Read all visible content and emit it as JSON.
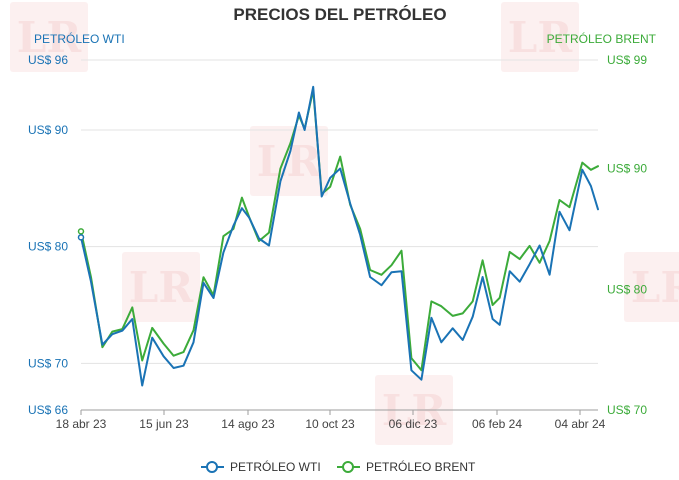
{
  "chart_data": {
    "type": "line",
    "title": "PRECIOS DEL PETRÓLEO",
    "watermark": "LR",
    "colors": {
      "wti": "#1a73b5",
      "brent": "#3cab3a"
    },
    "left_axis": {
      "label": "PETRÓLEO WTI",
      "range": [
        66,
        96
      ],
      "ticks": [
        {
          "value": 96,
          "label": "US$ 96"
        },
        {
          "value": 90,
          "label": "US$ 90"
        },
        {
          "value": 80,
          "label": "US$ 80"
        },
        {
          "value": 70,
          "label": "US$ 70"
        },
        {
          "value": 66,
          "label": "US$ 66"
        }
      ]
    },
    "right_axis": {
      "label": "PETRÓLEO BRENT",
      "range": [
        70,
        99
      ],
      "ticks": [
        {
          "value": 99,
          "label": "US$ 99"
        },
        {
          "value": 90,
          "label": "US$ 90"
        },
        {
          "value": 80,
          "label": "US$ 80"
        },
        {
          "value": 70,
          "label": "US$ 70"
        }
      ]
    },
    "x_ticks": [
      "18 abr 23",
      "15 jun 23",
      "14 ago 23",
      "10 oct 23",
      "06 dic 23",
      "06 feb 24",
      "04 abr 24"
    ],
    "grid": "horizontal",
    "legend": {
      "placement": "bottom-center",
      "entries": [
        "PETRÓLEO WTI",
        "PETRÓLEO BRENT"
      ]
    },
    "series": [
      {
        "name": "PETRÓLEO WTI",
        "axis": "left",
        "dates": [
          "2023-04-18",
          "2023-04-25",
          "2023-05-03",
          "2023-05-10",
          "2023-05-17",
          "2023-05-24",
          "2023-05-31",
          "2023-06-07",
          "2023-06-15",
          "2023-06-22",
          "2023-06-29",
          "2023-07-06",
          "2023-07-13",
          "2023-07-20",
          "2023-07-27",
          "2023-08-03",
          "2023-08-09",
          "2023-08-14",
          "2023-08-21",
          "2023-08-28",
          "2023-09-05",
          "2023-09-12",
          "2023-09-18",
          "2023-09-22",
          "2023-09-28",
          "2023-10-04",
          "2023-10-10",
          "2023-10-17",
          "2023-10-24",
          "2023-10-31",
          "2023-11-07",
          "2023-11-15",
          "2023-11-22",
          "2023-11-29",
          "2023-12-06",
          "2023-12-13",
          "2023-12-20",
          "2023-12-27",
          "2024-01-04",
          "2024-01-11",
          "2024-01-18",
          "2024-01-25",
          "2024-02-01",
          "2024-02-06",
          "2024-02-13",
          "2024-02-20",
          "2024-02-27",
          "2024-03-05",
          "2024-03-12",
          "2024-03-19",
          "2024-03-26",
          "2024-04-04",
          "2024-04-10",
          "2024-04-15"
        ],
        "values": [
          80.8,
          77.0,
          71.6,
          72.5,
          72.8,
          73.8,
          68.1,
          72.2,
          70.6,
          69.6,
          69.8,
          71.8,
          76.9,
          75.6,
          79.5,
          81.8,
          83.3,
          82.5,
          80.7,
          80.1,
          85.6,
          88.2,
          91.5,
          90.0,
          93.7,
          84.3,
          85.9,
          86.7,
          83.7,
          81.0,
          77.4,
          76.7,
          77.8,
          77.9,
          69.4,
          68.6,
          73.9,
          71.8,
          73.0,
          72.0,
          74.0,
          77.4,
          73.8,
          73.3,
          77.9,
          77.0,
          78.5,
          80.1,
          77.6,
          83.0,
          81.4,
          86.6,
          85.2,
          83.2
        ]
      },
      {
        "name": "PETRÓLEO BRENT",
        "axis": "right",
        "dates": [
          "2023-04-18",
          "2023-04-25",
          "2023-05-03",
          "2023-05-10",
          "2023-05-17",
          "2023-05-24",
          "2023-05-31",
          "2023-06-07",
          "2023-06-15",
          "2023-06-22",
          "2023-06-29",
          "2023-07-06",
          "2023-07-13",
          "2023-07-20",
          "2023-07-27",
          "2023-08-03",
          "2023-08-09",
          "2023-08-14",
          "2023-08-21",
          "2023-08-28",
          "2023-09-05",
          "2023-09-12",
          "2023-09-18",
          "2023-09-22",
          "2023-09-28",
          "2023-10-04",
          "2023-10-10",
          "2023-10-17",
          "2023-10-24",
          "2023-10-31",
          "2023-11-07",
          "2023-11-15",
          "2023-11-22",
          "2023-11-29",
          "2023-12-06",
          "2023-12-13",
          "2023-12-20",
          "2023-12-27",
          "2024-01-04",
          "2024-01-11",
          "2024-01-18",
          "2024-01-25",
          "2024-02-01",
          "2024-02-06",
          "2024-02-13",
          "2024-02-20",
          "2024-02-27",
          "2024-03-05",
          "2024-03-12",
          "2024-03-19",
          "2024-03-26",
          "2024-04-04",
          "2024-04-10",
          "2024-04-15"
        ],
        "values": [
          84.8,
          81.0,
          75.2,
          76.5,
          76.7,
          78.5,
          74.1,
          76.8,
          75.5,
          74.5,
          74.8,
          76.6,
          81.0,
          79.5,
          84.4,
          85.0,
          87.6,
          86.0,
          84.0,
          84.7,
          90.0,
          92.1,
          94.4,
          93.3,
          96.5,
          87.9,
          88.5,
          91.0,
          87.0,
          85.0,
          81.6,
          81.2,
          82.0,
          83.2,
          74.3,
          73.3,
          79.0,
          78.6,
          77.8,
          78.0,
          79.0,
          82.4,
          78.7,
          79.3,
          83.1,
          82.5,
          83.6,
          82.2,
          84.0,
          87.4,
          86.8,
          90.5,
          89.9,
          90.2
        ]
      }
    ]
  }
}
